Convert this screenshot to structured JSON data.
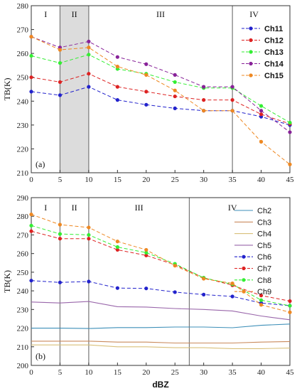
{
  "chart_data": [
    {
      "type": "line",
      "panel_label": "(a)",
      "ylabel": "TB(K)",
      "xlabel": "",
      "ylim": [
        210,
        280
      ],
      "yticks": [
        210,
        220,
        230,
        240,
        250,
        260,
        270,
        280
      ],
      "xlim": [
        0,
        45
      ],
      "xticks": [
        0,
        5,
        10,
        15,
        20,
        25,
        30,
        35,
        40,
        45
      ],
      "regions": [
        {
          "label": "I",
          "from": 0,
          "to": 5,
          "shaded": false
        },
        {
          "label": "II",
          "from": 5,
          "to": 10,
          "shaded": true
        },
        {
          "label": "III",
          "from": 10,
          "to": 35,
          "shaded": false
        },
        {
          "label": "IV",
          "from": 35,
          "to": 45,
          "shaded": false
        }
      ],
      "dividers": [
        5,
        10,
        35
      ],
      "shade_color": "#dcdcdc",
      "legend_position": "top-right",
      "x": [
        0,
        5,
        10,
        15,
        20,
        25,
        30,
        35,
        40,
        45
      ],
      "series": [
        {
          "name": "Ch11",
          "color": "#2222cc",
          "style": "dash-marker",
          "values": [
            244,
            242.5,
            246,
            240.5,
            238.5,
            237,
            236,
            236,
            233.5,
            230
          ]
        },
        {
          "name": "Ch12",
          "color": "#dd2222",
          "style": "dash-marker",
          "values": [
            250,
            248,
            251.5,
            246,
            244,
            242,
            240.5,
            240.5,
            234.5,
            230.5
          ]
        },
        {
          "name": "Ch13",
          "color": "#33ee33",
          "style": "dash-marker",
          "values": [
            259,
            256,
            259.5,
            253.5,
            251.5,
            248,
            245.5,
            245.5,
            238,
            231
          ]
        },
        {
          "name": "Ch14",
          "color": "#882299",
          "style": "dash-marker",
          "values": [
            267,
            262.5,
            265,
            258.5,
            255.5,
            251,
            246,
            246,
            236,
            227
          ]
        },
        {
          "name": "Ch15",
          "color": "#ee8822",
          "style": "dash-marker",
          "values": [
            267,
            261.5,
            262.5,
            254.5,
            251,
            244.5,
            236,
            236,
            223,
            213.5
          ]
        }
      ]
    },
    {
      "type": "line",
      "panel_label": "(b)",
      "ylabel": "TB(K)",
      "xlabel": "dBZ",
      "ylim": [
        200,
        290
      ],
      "yticks": [
        200,
        210,
        220,
        230,
        240,
        250,
        260,
        270,
        280,
        290
      ],
      "xlim": [
        0,
        45
      ],
      "xticks": [
        0,
        5,
        10,
        15,
        20,
        25,
        30,
        35,
        40,
        45
      ],
      "regions": [
        {
          "label": "I",
          "from": 0,
          "to": 5,
          "shaded": false
        },
        {
          "label": "II",
          "from": 5,
          "to": 10,
          "shaded": false
        },
        {
          "label": "III",
          "from": 10,
          "to": 27.5,
          "shaded": false
        },
        {
          "label": "IV",
          "from": 27.5,
          "to": 45,
          "shaded": false
        }
      ],
      "dividers": [
        5,
        10,
        27.5
      ],
      "legend_position": "right",
      "x": [
        0,
        5,
        10,
        15,
        20,
        25,
        30,
        35,
        40,
        45
      ],
      "series": [
        {
          "name": "Ch2",
          "color": "#3d8fb8",
          "style": "solid",
          "values": [
            220,
            220,
            219.8,
            220.3,
            220.3,
            220.6,
            220.6,
            220.2,
            221.5,
            222.2
          ]
        },
        {
          "name": "Ch3",
          "color": "#c98a5c",
          "style": "solid",
          "values": [
            213,
            213,
            213,
            212.5,
            212.5,
            212,
            212,
            212,
            212.5,
            212.8
          ]
        },
        {
          "name": "Ch4",
          "color": "#d9c07a",
          "style": "solid",
          "values": [
            211,
            211,
            211,
            210,
            210,
            209.5,
            209.5,
            209,
            209,
            209.3
          ]
        },
        {
          "name": "Ch5",
          "color": "#9966aa",
          "style": "solid",
          "values": [
            234,
            233.5,
            234.3,
            231.5,
            231.3,
            230.5,
            230,
            229.2,
            226.5,
            224.5
          ]
        },
        {
          "name": "Ch6",
          "color": "#2222cc",
          "style": "dash-marker",
          "values": [
            245.5,
            244.5,
            245,
            241.5,
            241.3,
            239.3,
            238,
            237,
            233.5,
            232
          ]
        },
        {
          "name": "Ch7",
          "color": "#dd2222",
          "style": "dash-marker",
          "values": [
            272,
            268,
            268,
            262,
            259,
            254,
            247,
            243,
            237.5,
            234.5
          ]
        },
        {
          "name": "Ch8",
          "color": "#33ee33",
          "style": "dash-marker",
          "values": [
            275,
            270.5,
            270,
            263.5,
            260.5,
            254.5,
            247,
            243.5,
            235,
            232
          ]
        },
        {
          "name": "Ch9",
          "color": "#ee8822",
          "style": "dash-marker",
          "values": [
            281,
            275.5,
            274,
            266.5,
            262,
            253.5,
            246.5,
            244,
            232.5,
            228.5
          ]
        }
      ]
    }
  ]
}
